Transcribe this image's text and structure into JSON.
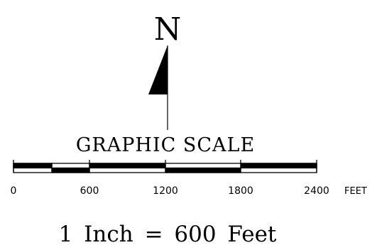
{
  "north_arrow": {
    "letter": "N"
  },
  "scale": {
    "title": "GRAPHIC SCALE",
    "ticks": [
      "0",
      "600",
      "1200",
      "1800",
      "2400"
    ],
    "unit": "FEET",
    "ratio_text": "1 Inch = 600 Feet"
  },
  "colors": {
    "ink": "#000000",
    "background": "#ffffff"
  }
}
